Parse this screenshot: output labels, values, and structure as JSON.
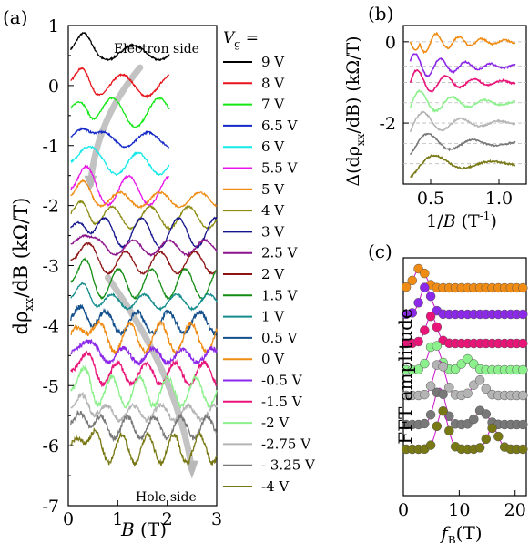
{
  "panel_labels": {
    "a": "(a)",
    "b": "(b)",
    "c": "(c)"
  },
  "colors": {
    "9 V": "#000000",
    "8 V": "#e8141b",
    "7 V": "#14e814",
    "6.5 V": "#1428c8",
    "6 V": "#14e8e8",
    "5.5 V": "#e814e8",
    "5 V": "#f08c14",
    "4 V": "#8c8c14",
    "3 V": "#14148c",
    "2.5 V": "#8c148c",
    "2 V": "#8c1414",
    "1.5 V": "#148c14",
    "1 V": "#148c8c",
    "0.5 V": "#14508c",
    "0 V": "#f08c14",
    "-0.5 V": "#8c28e8",
    "-1.5 V": "#e81478",
    "-2 V": "#8cf08c",
    "-2.75 V": "#b4b4b4",
    "- 3.25 V": "#787878",
    "-4 V": "#787814"
  },
  "chart_data": [
    {
      "id": "a",
      "type": "line",
      "xlabel_var": "B",
      "xlabel_unit": "(T)",
      "ylabel": "dρxx/dB (kΩ/T)",
      "ylabel_main": "dρ",
      "ylabel_sub": "xx",
      "ylabel_rest": "/dB (kΩ/T)",
      "xlim": [
        0,
        3
      ],
      "ylim": [
        -7,
        1
      ],
      "xticks": [
        "0",
        "1",
        "2",
        "3"
      ],
      "yticks": [
        "1",
        "0",
        "-1",
        "-2",
        "-3",
        "-4",
        "-5",
        "-6",
        "-7"
      ],
      "legend_title_var": "V",
      "legend_title_sub": "g",
      "legend_title_eq": " =",
      "annotations": [
        "Electron side",
        "Hole side"
      ],
      "series": [
        {
          "name": "9 V",
          "offset": 0.55,
          "xmax": 2.05
        },
        {
          "name": "8 V",
          "offset": 0.0,
          "xmax": 2.05
        },
        {
          "name": "7 V",
          "offset": -0.45,
          "xmax": 2.05
        },
        {
          "name": "6.5 V",
          "offset": -0.9,
          "xmax": 2.05
        },
        {
          "name": "6 V",
          "offset": -1.3,
          "xmax": 2.05
        },
        {
          "name": "5.5 V",
          "offset": -1.75,
          "xmax": 2.05
        },
        {
          "name": "5 V",
          "offset": -1.9,
          "xmax": 3.0
        },
        {
          "name": "4 V",
          "offset": -2.2,
          "xmax": 3.0
        },
        {
          "name": "3 V",
          "offset": -2.45,
          "xmax": 3.0
        },
        {
          "name": "2.5 V",
          "offset": -2.7,
          "xmax": 3.0
        },
        {
          "name": "2 V",
          "offset": -2.95,
          "xmax": 3.0
        },
        {
          "name": "1.5 V",
          "offset": -3.3,
          "xmax": 3.0
        },
        {
          "name": "1 V",
          "offset": -3.6,
          "xmax": 3.0
        },
        {
          "name": "0.5 V",
          "offset": -3.95,
          "xmax": 3.0
        },
        {
          "name": "0 V",
          "offset": -4.2,
          "xmax": 3.0
        },
        {
          "name": "-0.5 V",
          "offset": -4.5,
          "xmax": 3.0
        },
        {
          "name": "-1.5 V",
          "offset": -4.8,
          "xmax": 3.0
        },
        {
          "name": "-2 V",
          "offset": -5.1,
          "xmax": 3.0
        },
        {
          "name": "-2.75 V",
          "offset": -5.45,
          "xmax": 3.0
        },
        {
          "name": "- 3.25 V",
          "offset": -5.7,
          "xmax": 3.0
        },
        {
          "name": "-4 V",
          "offset": -6.05,
          "xmax": 3.0
        }
      ]
    },
    {
      "id": "b",
      "type": "line",
      "xlabel": "1/B (T-1)",
      "xlabel_var": "1/",
      "xlabel_var2": "B",
      "xlabel_unit": " (T",
      "xlabel_sup": "-1",
      "xlabel_close": ")",
      "ylabel": "Δ(dρxx/dB) (kΩ/T)",
      "ylabel_main": "Δ(dρ",
      "ylabel_sub": "xx",
      "ylabel_rest": "/dB) (kΩ/T)",
      "xlim": [
        0.3,
        1.2
      ],
      "ylim": [
        -3.5,
        0.4
      ],
      "xticks": [
        "0.5",
        "1.0"
      ],
      "xtick_values": [
        0.5,
        1.0
      ],
      "yticks": [
        "0",
        "-2"
      ],
      "ytick_values": [
        0,
        -2
      ],
      "series": [
        {
          "name": "0 V",
          "offset": 0.0,
          "color": "#f08c14"
        },
        {
          "name": "-0.5 V",
          "offset": -0.6,
          "color": "#8c28e8"
        },
        {
          "name": "-1.5 V",
          "offset": -1.0,
          "color": "#e81478"
        },
        {
          "name": "-2 V",
          "offset": -1.5,
          "color": "#8cf08c"
        },
        {
          "name": "-2.75 V",
          "offset": -2.0,
          "color": "#b4b4b4"
        },
        {
          "name": "- 3.25 V",
          "offset": -2.5,
          "color": "#787878"
        },
        {
          "name": "-4 V",
          "offset": -3.0,
          "color": "#787814"
        }
      ]
    },
    {
      "id": "c",
      "type": "scatter",
      "xlabel_var": "f",
      "xlabel_sub": "B",
      "xlabel_unit": "(T)",
      "ylabel": "FFT amplitude",
      "xlim": [
        0,
        22
      ],
      "xticks": [
        "0",
        "10",
        "20"
      ],
      "xtick_values": [
        0,
        10,
        20
      ],
      "series": [
        {
          "name": "0 V",
          "color": "#f08c14",
          "peaks": [
            [
              3,
              1.0
            ]
          ]
        },
        {
          "name": "-0.5 V",
          "color": "#8c28e8",
          "peaks": [
            [
              4,
              1.0
            ]
          ]
        },
        {
          "name": "-1.5 V",
          "color": "#e81478",
          "peaks": [
            [
              5,
              1.0
            ]
          ]
        },
        {
          "name": "-2 V",
          "color": "#8cf08c",
          "peaks": [
            [
              5.5,
              1.0
            ],
            [
              11.5,
              0.4
            ]
          ]
        },
        {
          "name": "-2.75 V",
          "color": "#b4b4b4",
          "peaks": [
            [
              6.5,
              1.0
            ],
            [
              13.5,
              0.45
            ]
          ]
        },
        {
          "name": "- 3.25 V",
          "color": "#787878",
          "peaks": [
            [
              6.5,
              1.0
            ],
            [
              14,
              0.4
            ]
          ]
        },
        {
          "name": "-4 V",
          "color": "#787814",
          "peaks": [
            [
              7,
              1.0
            ],
            [
              16,
              0.55
            ]
          ]
        }
      ]
    }
  ]
}
